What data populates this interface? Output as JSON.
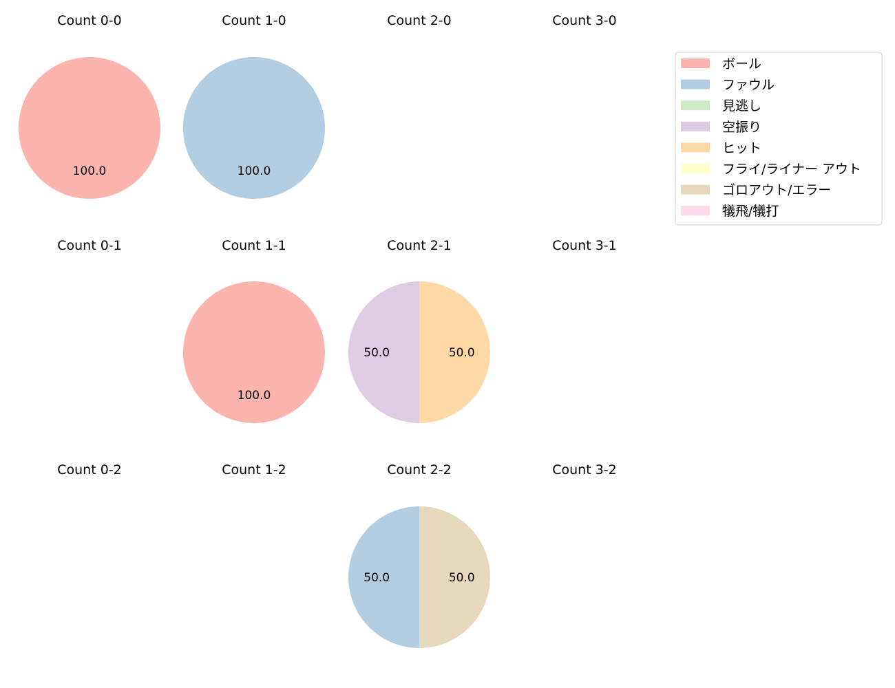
{
  "legend": {
    "position": "upper-right",
    "items": [
      {
        "label": "ボール",
        "color": "#fbb4ae"
      },
      {
        "label": "ファウル",
        "color": "#b3cde3"
      },
      {
        "label": "見逃し",
        "color": "#ccebc5"
      },
      {
        "label": "空振り",
        "color": "#decbe4"
      },
      {
        "label": "ヒット",
        "color": "#fed9a6"
      },
      {
        "label": "フライ/ライナー アウト",
        "color": "#ffffcc"
      },
      {
        "label": "ゴロアウト/エラー",
        "color": "#e5d8bd"
      },
      {
        "label": "犠飛/犠打",
        "color": "#fddaec"
      }
    ]
  },
  "chart_data": [
    {
      "type": "pie",
      "title": "Count 0-0",
      "slices": [
        {
          "category": "ボール",
          "value": 100.0
        }
      ]
    },
    {
      "type": "pie",
      "title": "Count 1-0",
      "slices": [
        {
          "category": "ファウル",
          "value": 100.0
        }
      ]
    },
    {
      "type": "pie",
      "title": "Count 2-0",
      "slices": []
    },
    {
      "type": "pie",
      "title": "Count 3-0",
      "slices": []
    },
    {
      "type": "pie",
      "title": "Count 0-1",
      "slices": []
    },
    {
      "type": "pie",
      "title": "Count 1-1",
      "slices": [
        {
          "category": "ボール",
          "value": 100.0
        }
      ]
    },
    {
      "type": "pie",
      "title": "Count 2-1",
      "slices": [
        {
          "category": "空振り",
          "value": 50.0
        },
        {
          "category": "ヒット",
          "value": 50.0
        }
      ]
    },
    {
      "type": "pie",
      "title": "Count 3-1",
      "slices": []
    },
    {
      "type": "pie",
      "title": "Count 0-2",
      "slices": []
    },
    {
      "type": "pie",
      "title": "Count 1-2",
      "slices": []
    },
    {
      "type": "pie",
      "title": "Count 2-2",
      "slices": [
        {
          "category": "ファウル",
          "value": 50.0
        },
        {
          "category": "ゴロアウト/エラー",
          "value": 50.0
        }
      ]
    },
    {
      "type": "pie",
      "title": "Count 3-2",
      "slices": []
    }
  ]
}
